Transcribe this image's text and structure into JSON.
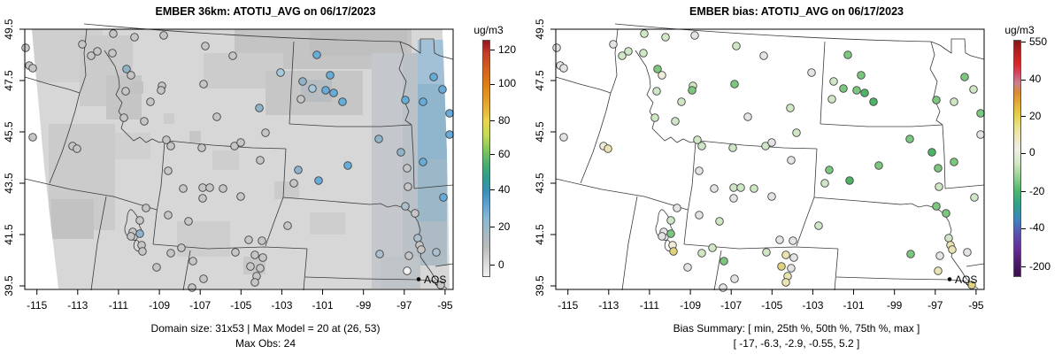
{
  "panels": [
    {
      "title": "EMBER 36km: ATOTIJ_AVG on 06/17/2023",
      "caption_line1": "Domain size: 31x53 | Max Model = 20 at (26, 53)",
      "caption_line2": "Max Obs: 24",
      "legend_label": "AQS",
      "colorbar": {
        "unit": "ug/m3",
        "ticks": [
          {
            "label": "120",
            "pos": 4.4
          },
          {
            "label": "100",
            "pos": 18.7
          },
          {
            "label": "80",
            "pos": 34.2
          },
          {
            "label": "60",
            "pos": 48.5
          },
          {
            "label": "40",
            "pos": 63.4
          },
          {
            "label": "20",
            "pos": 79.0
          },
          {
            "label": "0",
            "pos": 95.1
          }
        ],
        "stops": [
          [
            0,
            "#8e1a1a"
          ],
          [
            2,
            "#a42424"
          ],
          [
            5,
            "#c23b27"
          ],
          [
            12,
            "#d2601e"
          ],
          [
            20,
            "#df8616"
          ],
          [
            28,
            "#e5ad33"
          ],
          [
            34,
            "#e9d44f"
          ],
          [
            40,
            "#c6da57"
          ],
          [
            47,
            "#7cc35f"
          ],
          [
            53,
            "#46ab72"
          ],
          [
            58,
            "#2f9d8c"
          ],
          [
            64,
            "#3b8fb5"
          ],
          [
            69,
            "#5b9fcf"
          ],
          [
            75,
            "#86b7d6"
          ],
          [
            81,
            "#a3bac6"
          ],
          [
            88,
            "#bcbcbc"
          ],
          [
            95,
            "#dcdcdc"
          ],
          [
            100,
            "#efefef"
          ]
        ]
      },
      "has_raster": true,
      "station_color_index": 2
    },
    {
      "title": "EMBER bias: ATOTIJ_AVG on 06/17/2023",
      "caption_line1": "Bias Summary: [ min, 25th %, 50th %, 75th %, max ]",
      "caption_line2": "[ -17,  -6.3,  -2.9,  -0.55,  5.2 ]",
      "legend_label": "AQS",
      "colorbar": {
        "unit": "ug/m3",
        "ticks": [
          {
            "label": "550",
            "pos": 1.1
          },
          {
            "label": "40",
            "pos": 16.8
          },
          {
            "label": "20",
            "pos": 32.3
          },
          {
            "label": "0",
            "pos": 47.8
          },
          {
            "label": "-20",
            "pos": 64.1
          },
          {
            "label": "-40",
            "pos": 79.6
          },
          {
            "label": "-200",
            "pos": 95.8
          }
        ],
        "stops": [
          [
            0,
            "#801717"
          ],
          [
            4,
            "#b01d1d"
          ],
          [
            10,
            "#d92727"
          ],
          [
            14,
            "#d14a67"
          ],
          [
            18,
            "#c9828f"
          ],
          [
            22,
            "#d88c35"
          ],
          [
            27,
            "#e2b13a"
          ],
          [
            32,
            "#e7d24c"
          ],
          [
            38,
            "#ece4a0"
          ],
          [
            46,
            "#eeeee6"
          ],
          [
            52,
            "#d2e7c3"
          ],
          [
            58,
            "#94d193"
          ],
          [
            64,
            "#4db46c"
          ],
          [
            70,
            "#2f9f8e"
          ],
          [
            76,
            "#3f83bd"
          ],
          [
            82,
            "#5b51ab"
          ],
          [
            89,
            "#652a90"
          ],
          [
            96,
            "#45175e"
          ],
          [
            100,
            "#3c1152"
          ]
        ]
      },
      "has_raster": false,
      "station_color_index": 3
    }
  ],
  "axes": {
    "x_ticks": [
      {
        "label": "-115",
        "x": 41.7
      },
      {
        "label": "-113",
        "x": 87.8
      },
      {
        "label": "-111",
        "x": 133.9
      },
      {
        "label": "-109",
        "x": 180.1
      },
      {
        "label": "-107",
        "x": 226.2
      },
      {
        "label": "-105",
        "x": 272.3
      },
      {
        "label": "-103",
        "x": 318.4
      },
      {
        "label": "-101",
        "x": 364.5
      },
      {
        "label": "-99",
        "x": 410.7
      },
      {
        "label": "-97",
        "x": 456.8
      },
      {
        "label": "-95",
        "x": 502.9
      }
    ],
    "y_ticks": [
      {
        "label": "49.5",
        "y": 33
      },
      {
        "label": "47.5",
        "y": 91
      },
      {
        "label": "45.5",
        "y": 149
      },
      {
        "label": "43.5",
        "y": 207
      },
      {
        "label": "41.5",
        "y": 265
      },
      {
        "label": "39.5",
        "y": 323
      }
    ]
  },
  "palette": {
    "g": "#c6c6c6",
    "wh": "#f2f2f2",
    "bl": "#66acd8",
    "lb": "#a6c9de",
    "st": "#8fb3c7",
    "bg": "#abc0cc",
    "rg": "#e4e4e4",
    "pg": "#cfe7c5",
    "gr": "#7cc77e",
    "dg": "#4db367",
    "py": "#ebe4b2",
    "yl": "#e1d27e",
    "iv": "#efecd8"
  },
  "raster": {
    "base_color": "#d7d7d7",
    "patches": [
      [
        36,
        33,
        80,
        60,
        "#cfcfcf"
      ],
      [
        90,
        40,
        60,
        80,
        "#cbcbcb"
      ],
      [
        120,
        85,
        40,
        50,
        "#c5c5c5"
      ],
      [
        265,
        33,
        200,
        45,
        "#c4c4c4"
      ],
      [
        350,
        33,
        110,
        30,
        "#bfbfbf"
      ],
      [
        230,
        60,
        90,
        40,
        "#cccccc"
      ],
      [
        300,
        80,
        110,
        50,
        "#c6c6c6"
      ],
      [
        340,
        90,
        35,
        25,
        "#b8bdc2"
      ],
      [
        55,
        140,
        75,
        120,
        "#cbcbcb"
      ],
      [
        58,
        225,
        48,
        45,
        "#c2c2c2"
      ],
      [
        130,
        150,
        40,
        30,
        "#d0d0d0"
      ],
      [
        200,
        250,
        60,
        40,
        "#cdcdcd"
      ],
      [
        275,
        290,
        25,
        20,
        "#c8c8c8"
      ],
      [
        240,
        170,
        30,
        22,
        "#cecece"
      ],
      [
        420,
        60,
        52,
        266,
        "#c4c8cc"
      ],
      [
        455,
        60,
        20,
        260,
        "#bac1c7"
      ],
      [
        472,
        45,
        33,
        55,
        "#a2c1d6"
      ],
      [
        472,
        95,
        33,
        90,
        "#8fb6cd"
      ],
      [
        472,
        180,
        33,
        70,
        "#9cb8c8"
      ],
      [
        472,
        250,
        33,
        50,
        "#adbcc4"
      ],
      [
        430,
        290,
        45,
        36,
        "#bfc4c8"
      ],
      [
        350,
        240,
        40,
        25,
        "#cecece"
      ],
      [
        310,
        205,
        28,
        20,
        "#cbcbcb"
      ],
      [
        148,
        92,
        14,
        14,
        "#c2c2c2"
      ],
      [
        214,
        148,
        13,
        13,
        "#c6c6c6"
      ],
      [
        185,
        128,
        12,
        12,
        "#cccccc"
      ]
    ]
  },
  "chart_data": [
    {
      "type": "scatter",
      "subtype": "map-model-concentration",
      "title": "EMBER 36km: ATOTIJ_AVG on 06/17/2023",
      "x_tick_labels": [
        -115,
        -113,
        -111,
        -109,
        -107,
        -105,
        -103,
        -101,
        -99,
        -97,
        -95
      ],
      "y_tick_labels": [
        39.5,
        41.5,
        43.5,
        45.5,
        47.5,
        49.5
      ],
      "colorbar_unit": "ug/m3",
      "colorbar_tick_values": [
        120,
        100,
        80,
        60,
        40,
        20,
        0
      ],
      "annotations": [
        "Domain size: 31x53 | Max Model = 20 at (26, 53)",
        "Max Obs: 24"
      ],
      "legend": [
        "AQS"
      ],
      "grid": false
    },
    {
      "type": "scatter",
      "subtype": "map-bias",
      "title": "EMBER bias: ATOTIJ_AVG on 06/17/2023",
      "x_tick_labels": [
        -115,
        -113,
        -111,
        -109,
        -107,
        -105,
        -103,
        -101,
        -99,
        -97,
        -95
      ],
      "y_tick_labels": [
        39.5,
        41.5,
        43.5,
        45.5,
        47.5,
        49.5
      ],
      "colorbar_unit": "ug/m3",
      "colorbar_tick_values": [
        550,
        40,
        20,
        0,
        -20,
        -40,
        -200
      ],
      "annotations": [
        "Bias Summary: [ min, 25th %, 50th %, 75th %, max ]",
        "[ -17,  -6.3,  -2.9,  -0.55,  5.2 ]"
      ],
      "legend": [
        "AQS"
      ],
      "grid": false
    }
  ],
  "stations": [
    [
      29,
      54,
      "g",
      "rg"
    ],
    [
      33,
      74,
      "g",
      "rg"
    ],
    [
      37,
      77,
      "g",
      "rg"
    ],
    [
      37,
      155,
      "g",
      "rg"
    ],
    [
      82,
      165,
      "g",
      "iv"
    ],
    [
      87,
      168,
      "g",
      "py"
    ],
    [
      93,
      50,
      "g",
      "rg"
    ],
    [
      103,
      63,
      "g",
      "pg"
    ],
    [
      110,
      58,
      "g",
      "pg"
    ],
    [
      127,
      60,
      "g",
      "pg"
    ],
    [
      128,
      38,
      "g",
      "pg"
    ],
    [
      152,
      42,
      "g",
      "pg"
    ],
    [
      185,
      40,
      "g",
      "rg"
    ],
    [
      232,
      52,
      "g",
      "pg"
    ],
    [
      263,
      63,
      "g",
      "rg"
    ],
    [
      143,
      78,
      "st",
      "gr"
    ],
    [
      148,
      85,
      "g",
      "iv"
    ],
    [
      142,
      103,
      "g",
      "pg"
    ],
    [
      183,
      97,
      "g",
      "pg"
    ],
    [
      182,
      102,
      "g",
      "gr"
    ],
    [
      170,
      115,
      "g",
      "pg"
    ],
    [
      230,
      95,
      "g",
      "gr"
    ],
    [
      245,
      132,
      "g",
      "rg"
    ],
    [
      140,
      133,
      "g",
      "pg"
    ],
    [
      163,
      137,
      "g",
      "pg"
    ],
    [
      188,
      158,
      "g",
      "pg"
    ],
    [
      193,
      165,
      "g",
      "pg"
    ],
    [
      228,
      167,
      "g",
      "pg"
    ],
    [
      265,
      165,
      "g",
      "pg"
    ],
    [
      272,
      161,
      "g",
      "rg"
    ],
    [
      294,
      181,
      "g",
      "rg"
    ],
    [
      317,
      82,
      "lb",
      "rg"
    ],
    [
      358,
      62,
      "bl",
      "gr"
    ],
    [
      373,
      85,
      "bl",
      "gr"
    ],
    [
      342,
      92,
      "st",
      "pg"
    ],
    [
      353,
      100,
      "lb",
      "gr"
    ],
    [
      368,
      102,
      "bl",
      "gr"
    ],
    [
      377,
      105,
      "bl",
      "dg"
    ],
    [
      387,
      115,
      "bl",
      "dg"
    ],
    [
      340,
      112,
      "g",
      "pg"
    ],
    [
      293,
      122,
      "st",
      "pg"
    ],
    [
      300,
      150,
      "g",
      "pg"
    ],
    [
      458,
      113,
      "bl",
      "gr"
    ],
    [
      478,
      115,
      "bl",
      "pg"
    ],
    [
      490,
      87,
      "bl",
      "gr"
    ],
    [
      500,
      101,
      "bl",
      "pg"
    ],
    [
      508,
      128,
      "bl",
      "gr"
    ],
    [
      508,
      152,
      "bl",
      "rg"
    ],
    [
      428,
      157,
      "st",
      "gr"
    ],
    [
      453,
      172,
      "st",
      "dg"
    ],
    [
      478,
      183,
      "bl",
      "gr"
    ],
    [
      393,
      187,
      "bl",
      "gr"
    ],
    [
      337,
      192,
      "st",
      "gr"
    ],
    [
      332,
      207,
      "g",
      "pg"
    ],
    [
      360,
      204,
      "bl",
      "dg"
    ],
    [
      460,
      190,
      "g",
      "gr"
    ],
    [
      461,
      211,
      "g",
      "pg"
    ],
    [
      501,
      223,
      "bl",
      "pg"
    ],
    [
      458,
      233,
      "bg",
      "gr"
    ],
    [
      469,
      241,
      "g",
      "gr"
    ],
    [
      472,
      269,
      "bg",
      "pg"
    ],
    [
      474,
      277,
      "g",
      "py"
    ],
    [
      476,
      282,
      "g",
      "py"
    ],
    [
      493,
      285,
      "bg",
      "rg"
    ],
    [
      462,
      289,
      "g",
      "rg"
    ],
    [
      429,
      287,
      "bg",
      "gr"
    ],
    [
      460,
      306,
      "wh",
      "py"
    ],
    [
      498,
      322,
      "g",
      "yl"
    ],
    [
      325,
      255,
      "g",
      "pg"
    ],
    [
      281,
      271,
      "g",
      "rg"
    ],
    [
      296,
      272,
      "g",
      "rg"
    ],
    [
      190,
      193,
      "g",
      "rg"
    ],
    [
      207,
      213,
      "g",
      "rg"
    ],
    [
      229,
      212,
      "g",
      "pg"
    ],
    [
      237,
      212,
      "g",
      "pg"
    ],
    [
      252,
      213,
      "g",
      "pg"
    ],
    [
      229,
      224,
      "g",
      "rg"
    ],
    [
      272,
      222,
      "g",
      "rg"
    ],
    [
      165,
      235,
      "g",
      "rg"
    ],
    [
      190,
      243,
      "g",
      "rg"
    ],
    [
      213,
      250,
      "g",
      "pg"
    ],
    [
      158,
      249,
      "g",
      "pg"
    ],
    [
      150,
      262,
      "g",
      "rg"
    ],
    [
      158,
      264,
      "st",
      "gr"
    ],
    [
      148,
      267,
      "g",
      "rg"
    ],
    [
      160,
      277,
      "g",
      "iv"
    ],
    [
      161,
      284,
      "g",
      "yl"
    ],
    [
      177,
      302,
      "g",
      "rg"
    ],
    [
      193,
      286,
      "g",
      "pg"
    ],
    [
      205,
      280,
      "g",
      "pg"
    ],
    [
      218,
      295,
      "g",
      "gr"
    ],
    [
      230,
      315,
      "g",
      "rg"
    ],
    [
      217,
      325,
      "g",
      "rg"
    ],
    [
      266,
      285,
      "g",
      "pg"
    ],
    [
      288,
      288,
      "g",
      "py"
    ],
    [
      297,
      291,
      "g",
      "rg"
    ],
    [
      283,
      301,
      "g",
      "yl"
    ],
    [
      294,
      303,
      "g",
      "rg"
    ],
    [
      290,
      312,
      "g",
      "py"
    ],
    [
      288,
      319,
      "g",
      "py"
    ]
  ]
}
